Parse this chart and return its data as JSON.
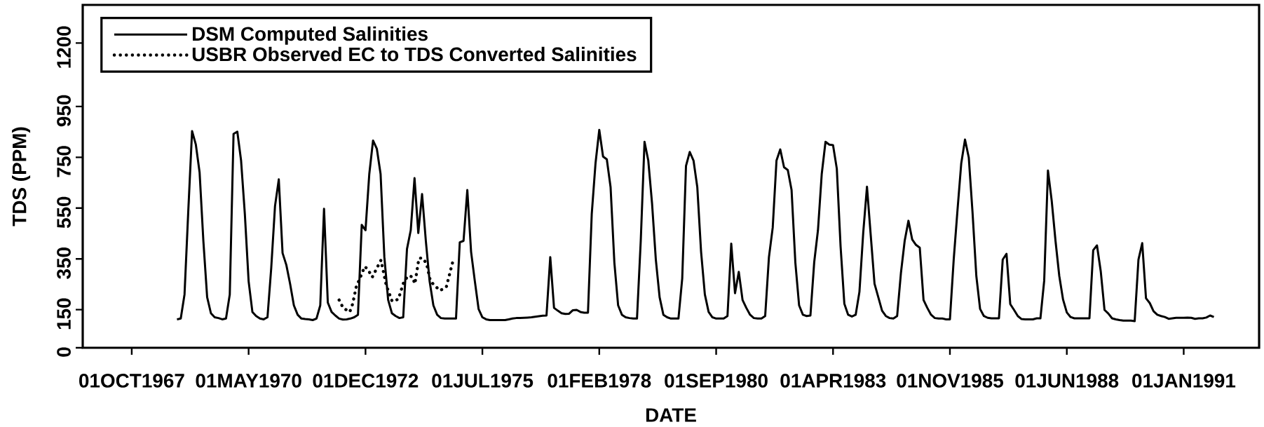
{
  "chart_data": {
    "type": "line",
    "xlabel": "DATE",
    "ylabel": "TDS (PPM)",
    "legend": "top left",
    "xlim": [
      "1966-09",
      "1992-09"
    ],
    "ylim": [
      0,
      1350
    ],
    "xticks": [
      {
        "value": "1967-10-01",
        "label": "01OCT1967"
      },
      {
        "value": "1970-05-01",
        "label": "01MAY1970"
      },
      {
        "value": "1972-12-01",
        "label": "01DEC1972"
      },
      {
        "value": "1975-07-01",
        "label": "01JUL1975"
      },
      {
        "value": "1978-02-01",
        "label": "01FEB1978"
      },
      {
        "value": "1980-09-01",
        "label": "01SEP1980"
      },
      {
        "value": "1983-04-01",
        "label": "01APR1983"
      },
      {
        "value": "1985-11-01",
        "label": "01NOV1985"
      },
      {
        "value": "1988-06-01",
        "label": "01JUN1988"
      },
      {
        "value": "1991-01-01",
        "label": "01JAN1991"
      }
    ],
    "yticks": [
      0,
      150,
      350,
      550,
      750,
      950,
      1200
    ],
    "series": [
      {
        "name": "DSM Computed Salinities",
        "color": "#000000",
        "line_style": "solid",
        "x": [
          "1968-10",
          "1968-11",
          "1968-12",
          "1969-01",
          "1969-02",
          "1969-03",
          "1969-04",
          "1969-05",
          "1969-06",
          "1969-07",
          "1969-08",
          "1969-09",
          "1969-10",
          "1969-11",
          "1969-12",
          "1970-01",
          "1970-02",
          "1970-03",
          "1970-04",
          "1970-05",
          "1970-06",
          "1970-07",
          "1970-08",
          "1970-09",
          "1970-10",
          "1970-11",
          "1970-12",
          "1971-01",
          "1971-02",
          "1971-03",
          "1971-04",
          "1971-05",
          "1971-06",
          "1971-07",
          "1971-08",
          "1971-09",
          "1971-10",
          "1971-11",
          "1971-12",
          "1972-01",
          "1972-02",
          "1972-03",
          "1972-04",
          "1972-05",
          "1972-06",
          "1972-07",
          "1972-08",
          "1972-09",
          "1972-10",
          "1972-11",
          "1972-12",
          "1973-01",
          "1973-02",
          "1973-03",
          "1973-04",
          "1973-05",
          "1973-06",
          "1973-07",
          "1973-08",
          "1973-09",
          "1973-10",
          "1973-11",
          "1973-12",
          "1974-01",
          "1974-02",
          "1974-03",
          "1974-04",
          "1974-05",
          "1974-06",
          "1974-07",
          "1974-08",
          "1974-09",
          "1974-10",
          "1974-11",
          "1974-12",
          "1975-01",
          "1975-02",
          "1975-03",
          "1975-04",
          "1975-05",
          "1975-06",
          "1975-07",
          "1975-08",
          "1975-09",
          "1975-10",
          "1975-11",
          "1975-12",
          "1976-01",
          "1976-02",
          "1976-03",
          "1976-04",
          "1976-05",
          "1976-06",
          "1976-07",
          "1976-08",
          "1976-09",
          "1976-10",
          "1976-11",
          "1976-12",
          "1977-01",
          "1977-02",
          "1977-03",
          "1977-04",
          "1977-05",
          "1977-06",
          "1977-07",
          "1977-08",
          "1977-09",
          "1977-10",
          "1977-11",
          "1977-12",
          "1978-01",
          "1978-02",
          "1978-03",
          "1978-04",
          "1978-05",
          "1978-06",
          "1978-07",
          "1978-08",
          "1978-09",
          "1978-10",
          "1978-11",
          "1978-12",
          "1979-01",
          "1979-02",
          "1979-03",
          "1979-04",
          "1979-05",
          "1979-06",
          "1979-07",
          "1979-08",
          "1979-09",
          "1979-10",
          "1979-11",
          "1979-12",
          "1980-01",
          "1980-02",
          "1980-03",
          "1980-04",
          "1980-05",
          "1980-06",
          "1980-07",
          "1980-08",
          "1980-09",
          "1980-10",
          "1980-11",
          "1980-12",
          "1981-01",
          "1981-02",
          "1981-03",
          "1981-04",
          "1981-05",
          "1981-06",
          "1981-07",
          "1981-08",
          "1981-09",
          "1981-10",
          "1981-11",
          "1981-12",
          "1982-01",
          "1982-02",
          "1982-03",
          "1982-04",
          "1982-05",
          "1982-06",
          "1982-07",
          "1982-08",
          "1982-09",
          "1982-10",
          "1982-11",
          "1982-12",
          "1983-01",
          "1983-02",
          "1983-03",
          "1983-04",
          "1983-05",
          "1983-06",
          "1983-07",
          "1983-08",
          "1983-09",
          "1983-10",
          "1983-11",
          "1983-12",
          "1984-01",
          "1984-02",
          "1984-03",
          "1984-04",
          "1984-05",
          "1984-06",
          "1984-07",
          "1984-08",
          "1984-09",
          "1984-10",
          "1984-11",
          "1984-12",
          "1985-01",
          "1985-02",
          "1985-03",
          "1985-04",
          "1985-05",
          "1985-06",
          "1985-07",
          "1985-08",
          "1985-09",
          "1985-10",
          "1985-11",
          "1985-12",
          "1986-01",
          "1986-02",
          "1986-03",
          "1986-04",
          "1986-05",
          "1986-06",
          "1986-07",
          "1986-08",
          "1986-09",
          "1986-10",
          "1986-11",
          "1986-12",
          "1987-01",
          "1987-02",
          "1987-03",
          "1987-04",
          "1987-05",
          "1987-06",
          "1987-07",
          "1987-08",
          "1987-09",
          "1987-10",
          "1987-11",
          "1987-12",
          "1988-01",
          "1988-02",
          "1988-03",
          "1988-04",
          "1988-05",
          "1988-06",
          "1988-07",
          "1988-08",
          "1988-09",
          "1988-10",
          "1988-11",
          "1988-12",
          "1989-01",
          "1989-02",
          "1989-03",
          "1989-04",
          "1989-05",
          "1989-06",
          "1989-07",
          "1989-08",
          "1989-09",
          "1989-10",
          "1989-11",
          "1989-12",
          "1990-01",
          "1990-02",
          "1990-03",
          "1990-04",
          "1990-05",
          "1990-06",
          "1990-07",
          "1990-08",
          "1990-09",
          "1990-10",
          "1990-11",
          "1990-12",
          "1991-01",
          "1991-02",
          "1991-03",
          "1991-04",
          "1991-05",
          "1991-06",
          "1991-07",
          "1991-08",
          "1991-09"
        ],
        "values": [
          112,
          115,
          210,
          540,
          853,
          800,
          690,
          420,
          199,
          136,
          120,
          117,
          112,
          115,
          210,
          842,
          851,
          737,
          526,
          262,
          141,
          125,
          115,
          112,
          120,
          315,
          558,
          663,
          373,
          326,
          252,
          167,
          130,
          115,
          113,
          112,
          109,
          115,
          167,
          547,
          178,
          141,
          127,
          115,
          111,
          112,
          115,
          120,
          130,
          484,
          463,
          684,
          816,
          784,
          684,
          357,
          189,
          136,
          125,
          117,
          120,
          389,
          463,
          668,
          452,
          605,
          421,
          262,
          167,
          130,
          117,
          115,
          115,
          115,
          115,
          415,
          421,
          621,
          378,
          262,
          152,
          120,
          112,
          109,
          109,
          109,
          109,
          109,
          112,
          115,
          117,
          117,
          118,
          119,
          120,
          122,
          124,
          126,
          127,
          357,
          157,
          146,
          136,
          133,
          134,
          148,
          149,
          141,
          138,
          138,
          526,
          726,
          858,
          753,
          742,
          632,
          336,
          167,
          130,
          120,
          117,
          115,
          115,
          421,
          811,
          737,
          568,
          347,
          199,
          130,
          120,
          115,
          115,
          115,
          273,
          716,
          771,
          737,
          632,
          378,
          210,
          141,
          120,
          115,
          115,
          115,
          125,
          410,
          215,
          299,
          188,
          157,
          130,
          117,
          115,
          115,
          125,
          357,
          473,
          737,
          781,
          711,
          700,
          621,
          336,
          167,
          130,
          125,
          127,
          336,
          463,
          684,
          811,
          800,
          798,
          705,
          399,
          173,
          130,
          123,
          130,
          220,
          452,
          634,
          442,
          252,
          199,
          146,
          125,
          117,
          115,
          125,
          294,
          421,
          500,
          426,
          405,
          394,
          188,
          157,
          130,
          117,
          115,
          115,
          112,
          112,
          347,
          541,
          726,
          820,
          749,
          532,
          283,
          153,
          125,
          118,
          116,
          116,
          116,
          347,
          370,
          172,
          149,
          125,
          113,
          112,
          112,
          112,
          116,
          116,
          264,
          698,
          578,
          421,
          283,
          190,
          139,
          121,
          116,
          116,
          116,
          116,
          116,
          384,
          403,
          301,
          149,
          135,
          116,
          112,
          109,
          107,
          107,
          107,
          105,
          347,
          412,
          195,
          176,
          144,
          130,
          125,
          121,
          114,
          116,
          118,
          118,
          118,
          119,
          118,
          114,
          116,
          116,
          119,
          127,
          121
        ]
      },
      {
        "name": "USBR Observed EC to TDS Converted Salinities",
        "color": "#000000",
        "line_style": "dotted",
        "x": [
          "1972-05-01",
          "1972-06-03",
          "1972-07-26",
          "1972-08-19",
          "1972-09-17",
          "1972-10-30",
          "1972-11-25",
          "1972-12-21",
          "1973-01-25",
          "1973-02-25",
          "1973-04-04",
          "1973-04-19",
          "1973-05-16",
          "1973-07-03",
          "1973-08-22",
          "1973-10-03",
          "1973-11-07",
          "1973-12-13",
          "1974-01-04",
          "1974-02-06",
          "1974-03-02",
          "1974-04-06",
          "1974-05-08",
          "1974-07-23",
          "1974-09-14",
          "1974-10-18",
          "1974-11-05"
        ],
        "values": [
          188,
          157,
          141,
          173,
          239,
          289,
          320,
          308,
          278,
          307,
          345,
          310,
          247,
          183,
          191,
          255,
          283,
          280,
          252,
          352,
          354,
          333,
          262,
          225,
          239,
          305,
          338
        ]
      }
    ]
  }
}
